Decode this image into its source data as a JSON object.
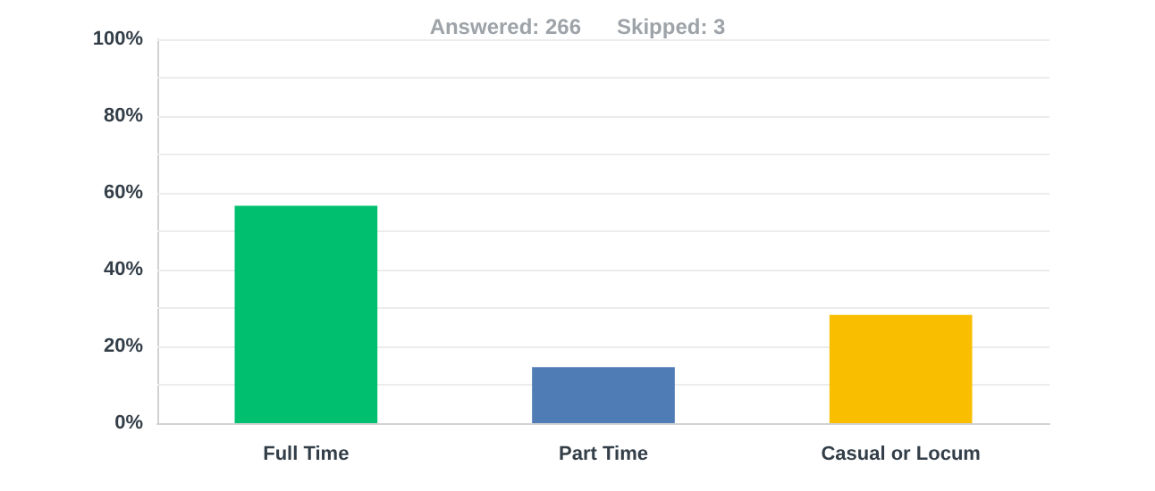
{
  "chart_data": {
    "type": "bar",
    "title": "Answered: 266      Skipped: 3",
    "categories": [
      "Full Time",
      "Part Time",
      "Casual or Locum"
    ],
    "values": [
      56.6,
      14.6,
      28.2
    ],
    "colors": [
      "#00bf6f",
      "#507cb6",
      "#f9be00"
    ],
    "ylim": [
      0,
      100
    ],
    "yticks": [
      {
        "value": 0,
        "label": "0%"
      },
      {
        "value": 10,
        "label": null
      },
      {
        "value": 20,
        "label": "20%"
      },
      {
        "value": 30,
        "label": null
      },
      {
        "value": 40,
        "label": "40%"
      },
      {
        "value": 50,
        "label": null
      },
      {
        "value": 60,
        "label": "60%"
      },
      {
        "value": 70,
        "label": null
      },
      {
        "value": 80,
        "label": "80%"
      },
      {
        "value": 90,
        "label": null
      },
      {
        "value": 100,
        "label": "100%"
      }
    ],
    "grid": "y"
  }
}
